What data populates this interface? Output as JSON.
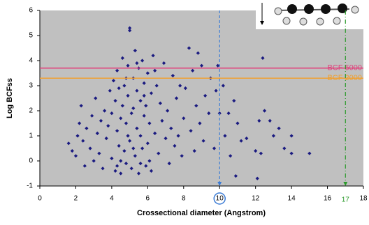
{
  "chart_data": {
    "type": "scatter",
    "xlabel": "Crossectional diameter (Angstrom)",
    "ylabel": "Log BCFss",
    "xlim": [
      0,
      18
    ],
    "ylim": [
      -1,
      6
    ],
    "xticks": [
      0,
      2,
      4,
      6,
      8,
      10,
      12,
      14,
      16,
      18
    ],
    "yticks": [
      -1,
      0,
      1,
      2,
      3,
      4,
      5,
      6
    ],
    "color": "#1a1a80",
    "background": "#c0c0c0",
    "x": [
      1.6,
      1.8,
      2.0,
      2.1,
      2.2,
      2.3,
      2.4,
      2.5,
      2.6,
      2.8,
      2.9,
      3.0,
      3.1,
      3.2,
      3.3,
      3.4,
      3.5,
      3.6,
      3.7,
      3.8,
      3.9,
      4.0,
      4.0,
      4.1,
      4.2,
      4.2,
      4.3,
      4.3,
      4.4,
      4.4,
      4.5,
      4.5,
      4.6,
      4.6,
      4.7,
      4.7,
      4.8,
      4.8,
      4.9,
      4.9,
      5.0,
      5.0,
      5.0,
      5.1,
      5.1,
      5.2,
      5.2,
      5.3,
      5.3,
      5.4,
      5.4,
      5.5,
      5.5,
      5.6,
      5.6,
      5.7,
      5.7,
      5.8,
      5.8,
      5.9,
      5.9,
      6.0,
      6.0,
      6.1,
      6.2,
      6.2,
      6.3,
      6.4,
      6.5,
      6.6,
      6.7,
      6.8,
      6.9,
      7.0,
      7.1,
      7.2,
      7.3,
      7.4,
      7.5,
      7.6,
      7.7,
      7.8,
      7.9,
      8.0,
      8.1,
      8.3,
      8.4,
      8.5,
      8.6,
      8.7,
      8.8,
      8.9,
      9.0,
      9.1,
      9.2,
      9.4,
      9.5,
      9.7,
      9.8,
      9.9,
      10.0,
      10.2,
      10.3,
      10.5,
      10.6,
      10.8,
      10.9,
      11.0,
      11.2,
      11.5,
      12.0,
      12.1,
      12.2,
      12.3,
      12.4,
      12.5,
      12.8,
      13.0,
      13.3,
      13.6,
      14.0,
      14.0,
      15.0,
      4.5,
      4.9,
      5.2,
      5.6,
      6.1,
      4.3,
      5.8,
      6.4,
      4.8,
      5.4
    ],
    "y": [
      0.7,
      0.4,
      0.2,
      1.0,
      1.5,
      2.2,
      0.8,
      -0.2,
      1.3,
      0.5,
      1.8,
      0.0,
      2.5,
      1.1,
      0.3,
      1.6,
      -0.3,
      2.0,
      0.9,
      1.4,
      2.8,
      0.1,
      1.9,
      3.2,
      -0.4,
      2.4,
      1.2,
      3.6,
      0.6,
      2.9,
      1.7,
      -0.5,
      2.2,
      4.1,
      0.4,
      3.0,
      1.5,
      -0.1,
      2.6,
      3.8,
      0.8,
      5.3,
      5.2,
      1.9,
      -0.3,
      3.3,
      2.1,
      0.2,
      4.4,
      1.3,
      2.8,
      -0.5,
      3.7,
      1.0,
      2.4,
      0.5,
      4.0,
      1.8,
      3.1,
      -0.2,
      2.2,
      0.7,
      3.5,
      1.5,
      2.7,
      -0.4,
      4.2,
      1.1,
      3.0,
      0.3,
      2.3,
      1.6,
      3.9,
      0.9,
      2.0,
      -0.1,
      1.3,
      3.4,
      0.6,
      2.5,
      1.0,
      3.0,
      0.2,
      1.7,
      2.9,
      4.5,
      1.2,
      3.6,
      0.4,
      2.2,
      4.3,
      1.5,
      3.8,
      0.8,
      2.6,
      1.9,
      3.3,
      0.5,
      2.8,
      3.8,
      1.9,
      3.0,
      1.0,
      1.9,
      0.2,
      2.4,
      -0.6,
      1.5,
      0.8,
      0.9,
      0.4,
      -0.7,
      1.6,
      0.3,
      4.1,
      2.0,
      1.6,
      1.0,
      1.3,
      0.5,
      1.0,
      0.3,
      0.3,
      0.0,
      1.0,
      0.5,
      -0.1,
      0.0,
      -0.2,
      2.6,
      3.6,
      3.3,
      3.9
    ],
    "hlines": [
      {
        "value": 3.7,
        "label": "BCF 5000",
        "color": "#e0407a"
      },
      {
        "value": 3.3,
        "label": "BCF 2000",
        "color": "#f0a030"
      }
    ],
    "vlines": [
      {
        "value": 10,
        "color": "#3a7bd5",
        "style": "dashed",
        "circled": true
      },
      {
        "value": 17,
        "label": "17",
        "color": "#2a9a2a",
        "style": "dashdot"
      }
    ]
  }
}
